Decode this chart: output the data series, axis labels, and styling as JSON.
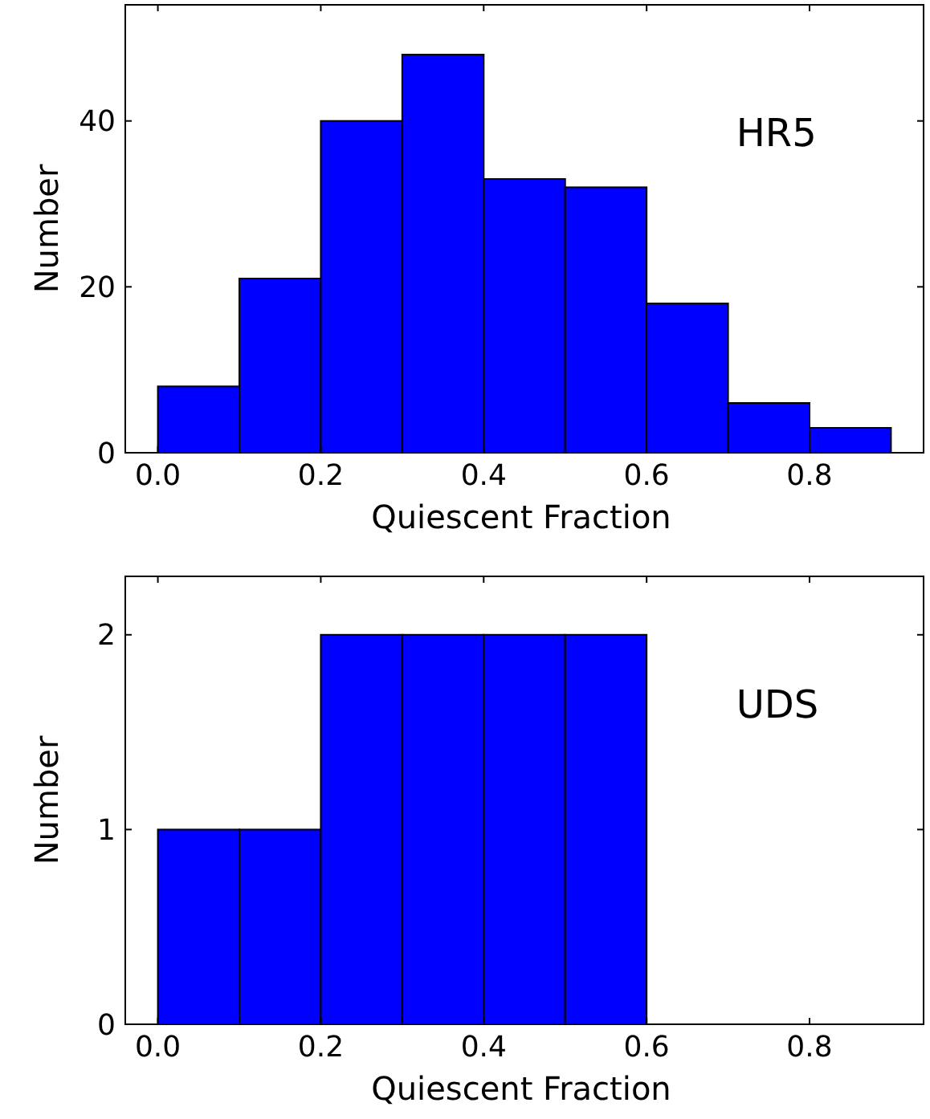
{
  "chart_data": [
    {
      "type": "histogram",
      "xlabel": "Quiescent Fraction",
      "ylabel": "Number",
      "annotations": [
        "HR5"
      ],
      "bins": [
        0,
        0.1,
        0.2,
        0.3,
        0.4,
        0.5,
        0.6,
        0.7,
        0.8,
        0.9
      ],
      "values": [
        8,
        21,
        40,
        48,
        33,
        32,
        18,
        6,
        3
      ],
      "color": "#0000ff",
      "xlim": [
        -0.04,
        0.94
      ],
      "ylim": [
        0,
        54
      ],
      "xticks": [
        {
          "value": 0,
          "label": "0.0"
        },
        0.2,
        0.4,
        0.6,
        0.8
      ],
      "yticks": [
        0,
        20,
        40
      ],
      "grid": false
    },
    {
      "type": "histogram",
      "xlabel": "Quiescent Fraction",
      "ylabel": "Number",
      "annotations": [
        "UDS"
      ],
      "bins": [
        0,
        0.1,
        0.2,
        0.3,
        0.4,
        0.5,
        0.6,
        0.7,
        0.8,
        0.9
      ],
      "values": [
        1,
        1,
        2,
        2,
        2,
        2,
        0,
        0,
        0
      ],
      "color": "#0000ff",
      "xlim": [
        -0.04,
        0.94
      ],
      "ylim": [
        0,
        2.3
      ],
      "xticks": [
        {
          "value": 0,
          "label": "0.0"
        },
        0.2,
        0.4,
        0.6,
        0.8
      ],
      "yticks": [
        0,
        1,
        2
      ],
      "grid": false
    }
  ]
}
